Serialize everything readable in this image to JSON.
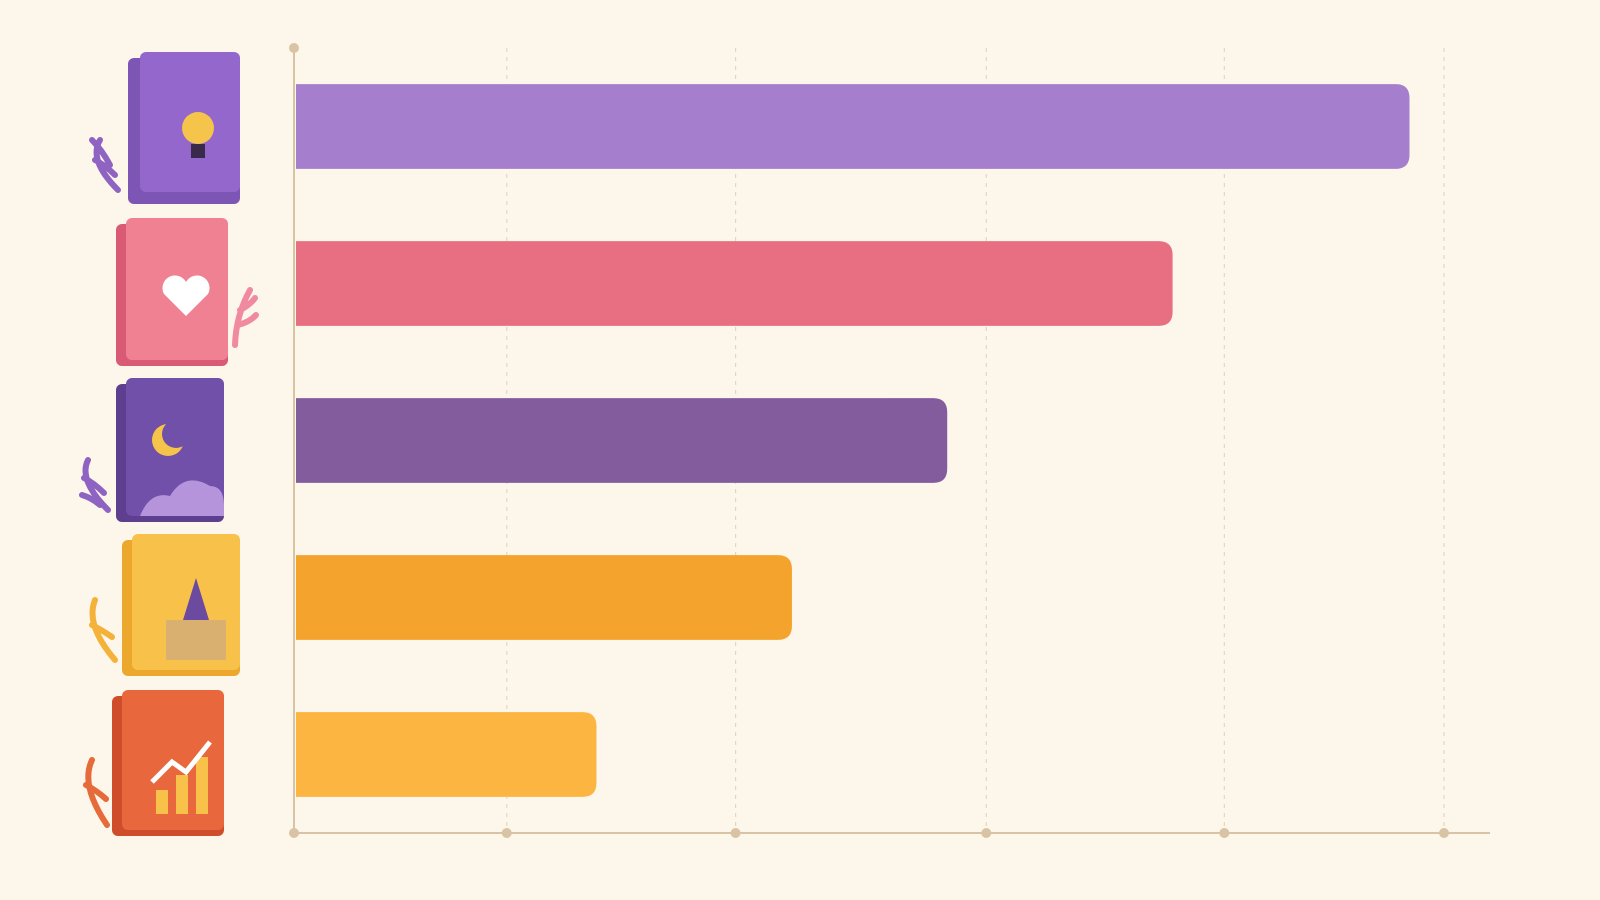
{
  "chart_data": {
    "type": "bar",
    "orientation": "horizontal",
    "categories": [
      null,
      null,
      null,
      null,
      null
    ],
    "values": [
      97,
      76.4,
      56.8,
      43.3,
      26.3
    ],
    "colors": [
      "#a57fcd",
      "#e86f82",
      "#835c9e",
      "#f4a42d",
      "#fbb540"
    ],
    "xlim": [
      0,
      104
    ],
    "xticks": [
      0,
      18.5,
      38.4,
      60.2,
      80.9,
      100
    ],
    "grid": true
  }
}
